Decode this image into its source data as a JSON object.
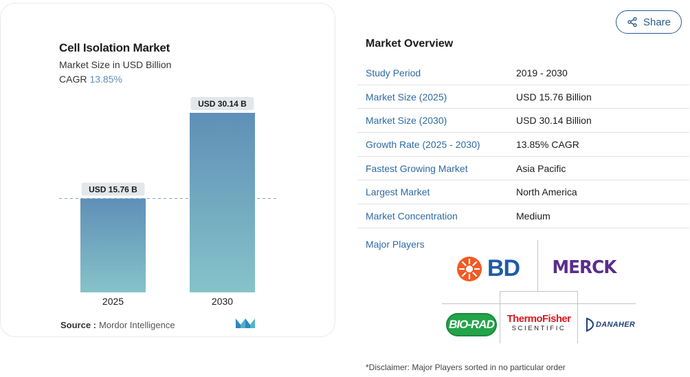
{
  "chart": {
    "title": "Cell Isolation Market",
    "subtitle": "Market Size in USD Billion",
    "cagr_label": "CAGR",
    "cagr_value": "13.85%",
    "source_label": "Source :",
    "source_value": "Mordor Intelligence"
  },
  "chart_data": {
    "type": "bar",
    "categories": [
      "2025",
      "2030"
    ],
    "values": [
      15.76,
      30.14
    ],
    "data_labels": [
      "USD 15.76 B",
      "USD 30.14 B"
    ],
    "title": "Cell Isolation Market",
    "subtitle": "Market Size in USD Billion",
    "xlabel": "",
    "ylabel": "",
    "ylim": [
      0,
      30.14
    ],
    "grid": false,
    "reference_line": 15.76,
    "colors": {
      "bar_top": "#5f8fb7",
      "bar_bottom": "#86c3c9",
      "label_bg": "#e4e7ea"
    }
  },
  "share": {
    "label": "Share"
  },
  "overview": {
    "title": "Market Overview",
    "rows": [
      {
        "label": "Study Period",
        "value": "2019 - 2030"
      },
      {
        "label": "Market Size (2025)",
        "value": "USD 15.76 Billion"
      },
      {
        "label": "Market Size (2030)",
        "value": "USD 30.14 Billion"
      },
      {
        "label": "Growth Rate (2025 - 2030)",
        "value": "13.85% CAGR"
      },
      {
        "label": "Fastest Growing Market",
        "value": "Asia Pacific"
      },
      {
        "label": "Largest Market",
        "value": "North America"
      },
      {
        "label": "Market Concentration",
        "value": "Medium"
      }
    ],
    "players_label": "Major Players",
    "players": {
      "bd": "BD",
      "merck": "MERCK",
      "biorad": "BIO-RAD",
      "thermo_line1": "ThermoFisher",
      "thermo_line2": "SCIENTIFIC",
      "danaher": "DANAHER"
    },
    "disclaimer": "*Disclaimer: Major Players sorted in no particular order"
  },
  "colors": {
    "link_blue": "#2d6aa3",
    "accent": "#5b8fb8"
  }
}
